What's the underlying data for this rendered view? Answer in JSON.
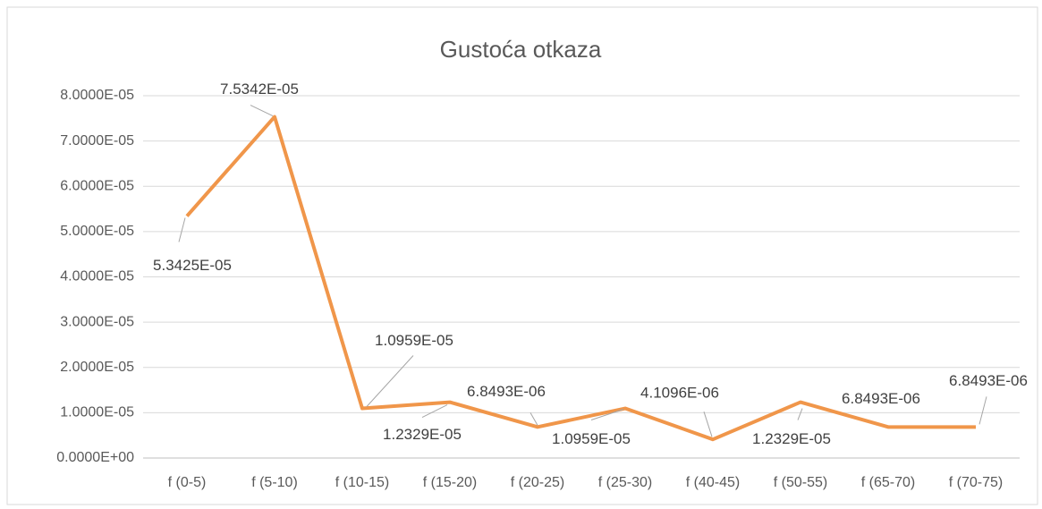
{
  "chart_data": {
    "type": "line",
    "title": "Gustoća otkaza",
    "categories": [
      "f (0-5)",
      "f (5-10)",
      "f (10-15)",
      "f (15-20)",
      "f (20-25)",
      "f (25-30)",
      "f (40-45)",
      "f (50-55)",
      "f (65-70)",
      "f (70-75)"
    ],
    "values": [
      5.3425e-05,
      7.5342e-05,
      1.0959e-05,
      1.2329e-05,
      6.8493e-06,
      1.0959e-05,
      4.1096e-06,
      1.2329e-05,
      6.8493e-06,
      6.8493e-06
    ],
    "value_labels": [
      "5.3425E-05",
      "7.5342E-05",
      "1.0959E-05",
      "1.2329E-05",
      "6.8493E-06",
      "1.0959E-05",
      "4.1096E-06",
      "1.2329E-05",
      "6.8493E-06",
      "6.8493E-06"
    ],
    "color": "#f0964a",
    "ylim": [
      0,
      8e-05
    ],
    "yticks": [
      {
        "value": 0,
        "label": "0.0000E+00"
      },
      {
        "value": 1e-05,
        "label": "1.0000E-05"
      },
      {
        "value": 2e-05,
        "label": "2.0000E-05"
      },
      {
        "value": 3e-05,
        "label": "3.0000E-05"
      },
      {
        "value": 4e-05,
        "label": "4.0000E-05"
      },
      {
        "value": 5e-05,
        "label": "5.0000E-05"
      },
      {
        "value": 6e-05,
        "label": "6.0000E-05"
      },
      {
        "value": 7e-05,
        "label": "7.0000E-05"
      },
      {
        "value": 8e-05,
        "label": "8.0000E-05"
      }
    ],
    "grid": true
  }
}
